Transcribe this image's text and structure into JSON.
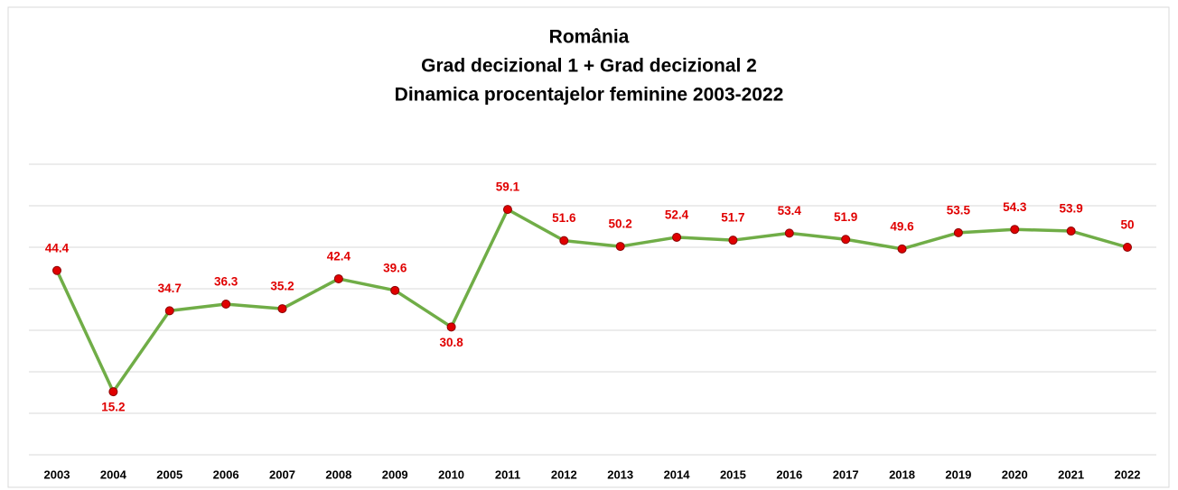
{
  "chart_data": {
    "type": "line",
    "title": "România",
    "subtitle": [
      "Grad decizional 1 + Grad decizional 2",
      "Dinamica procentajelor feminine 2003-2022"
    ],
    "categories": [
      "2003",
      "2004",
      "2005",
      "2006",
      "2007",
      "2008",
      "2009",
      "2010",
      "2011",
      "2012",
      "2013",
      "2014",
      "2015",
      "2016",
      "2017",
      "2018",
      "2019",
      "2020",
      "2021",
      "2022"
    ],
    "series": [
      {
        "name": "România",
        "color": "#70ad47",
        "marker_color": "#e00000",
        "values": [
          44.4,
          15.2,
          34.7,
          36.3,
          35.2,
          42.4,
          39.6,
          30.8,
          59.1,
          51.6,
          50.2,
          52.4,
          51.7,
          53.4,
          51.9,
          49.6,
          53.5,
          54.3,
          53.9,
          50
        ]
      }
    ],
    "ylim": [
      0,
      70
    ],
    "yticks": [
      0,
      10,
      20,
      30,
      40,
      50,
      60,
      70
    ],
    "grid": true,
    "legend": false
  }
}
